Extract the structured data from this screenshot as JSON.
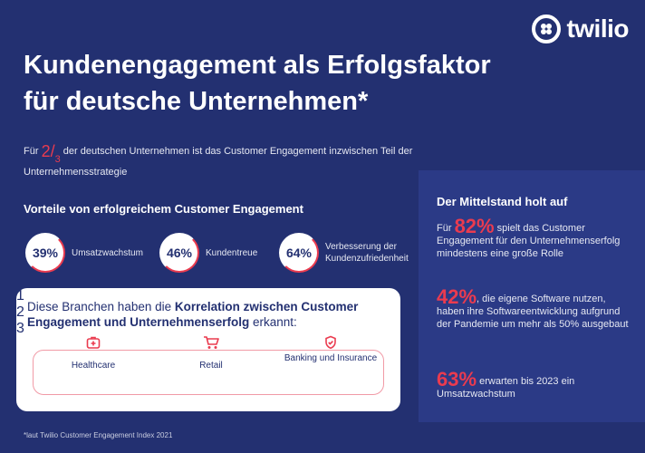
{
  "brand": {
    "name": "twilio",
    "accent": "#ea3b4f",
    "background": "#233071"
  },
  "title": {
    "line1": "Kundenengagement als Erfolgsfaktor",
    "line2": "für deutsche Unternehmen*"
  },
  "intro": {
    "prefix": "Für",
    "numerator": "2",
    "denominator": "3",
    "text": "der deutschen Unternehmen ist das Customer Engagement inzwischen Teil der Unternehmensstrategie"
  },
  "advantages": {
    "title": "Vorteile von erfolgreichem Customer Engagement",
    "items": [
      {
        "value": "39%",
        "label": "Umsatzwachstum"
      },
      {
        "value": "46%",
        "label": "Kundentreue"
      },
      {
        "value": "64%",
        "label": "Verbesserung der Kundenzufriedenheit"
      }
    ]
  },
  "branches": {
    "heading_plain1": "Diese Branchen haben die ",
    "heading_bold": "Korrelation zwischen Customer Engagement und Unternehmenserfolg",
    "heading_plain2": " erkannt:",
    "items": [
      {
        "icon": "medical-kit-icon",
        "label": "Healthcare",
        "num": "1"
      },
      {
        "icon": "shopping-cart-icon",
        "label": "Retail",
        "num": "2"
      },
      {
        "icon": "shield-check-icon",
        "label": "Banking und Insurance",
        "num": "3"
      }
    ]
  },
  "mittelstand": {
    "title": "Der Mittelstand holt auf",
    "stats": [
      {
        "prefix": "Für ",
        "big": "82%",
        "text": " spielt das Customer Engagement für den Unternehmenserfolg mindestens eine große Rolle"
      },
      {
        "prefix": "",
        "big": "42%",
        "text": ", die eigene Software nutzen, haben ihre Softwareentwicklung aufgrund der Pandemie um mehr als 50% ausgebaut"
      },
      {
        "prefix": "",
        "big": "63%",
        "text": " erwarten bis 2023 ein Umsatzwachstum"
      }
    ]
  },
  "footnote": "*laut Twilio Customer Engagement Index 2021"
}
